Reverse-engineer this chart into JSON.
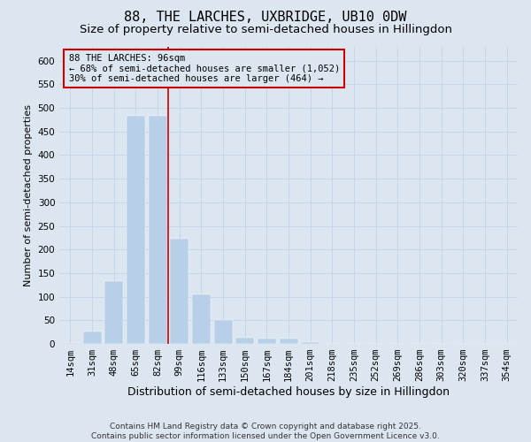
{
  "title": "88, THE LARCHES, UXBRIDGE, UB10 0DW",
  "subtitle": "Size of property relative to semi-detached houses in Hillingdon",
  "xlabel": "Distribution of semi-detached houses by size in Hillingdon",
  "ylabel": "Number of semi-detached properties",
  "footer_line1": "Contains HM Land Registry data © Crown copyright and database right 2025.",
  "footer_line2": "Contains public sector information licensed under the Open Government Licence v3.0.",
  "categories": [
    "14sqm",
    "31sqm",
    "48sqm",
    "65sqm",
    "82sqm",
    "99sqm",
    "116sqm",
    "133sqm",
    "150sqm",
    "167sqm",
    "184sqm",
    "201sqm",
    "218sqm",
    "235sqm",
    "252sqm",
    "269sqm",
    "286sqm",
    "303sqm",
    "320sqm",
    "337sqm",
    "354sqm"
  ],
  "values": [
    2,
    27,
    133,
    483,
    483,
    222,
    105,
    50,
    14,
    12,
    12,
    4,
    0,
    0,
    0,
    0,
    0,
    1,
    0,
    0,
    1
  ],
  "bar_color": "#b8cfe8",
  "bar_edgecolor": "#b8cfe8",
  "grid_color": "#c8d4e8",
  "background_color": "#dce6f0",
  "vline_color": "#cc0000",
  "annotation_line1": "88 THE LARCHES: 96sqm",
  "annotation_line2": "← 68% of semi-detached houses are smaller (1,052)",
  "annotation_line3": "30% of semi-detached houses are larger (464) →",
  "annotation_box_color": "#cc0000",
  "annotation_bg": "#dce6f0",
  "ylim": [
    0,
    630
  ],
  "yticks": [
    0,
    50,
    100,
    150,
    200,
    250,
    300,
    350,
    400,
    450,
    500,
    550,
    600
  ],
  "title_fontsize": 11,
  "subtitle_fontsize": 9.5,
  "xlabel_fontsize": 9,
  "ylabel_fontsize": 8,
  "tick_fontsize": 7.5,
  "annotation_fontsize": 7.5,
  "footer_fontsize": 6.5
}
